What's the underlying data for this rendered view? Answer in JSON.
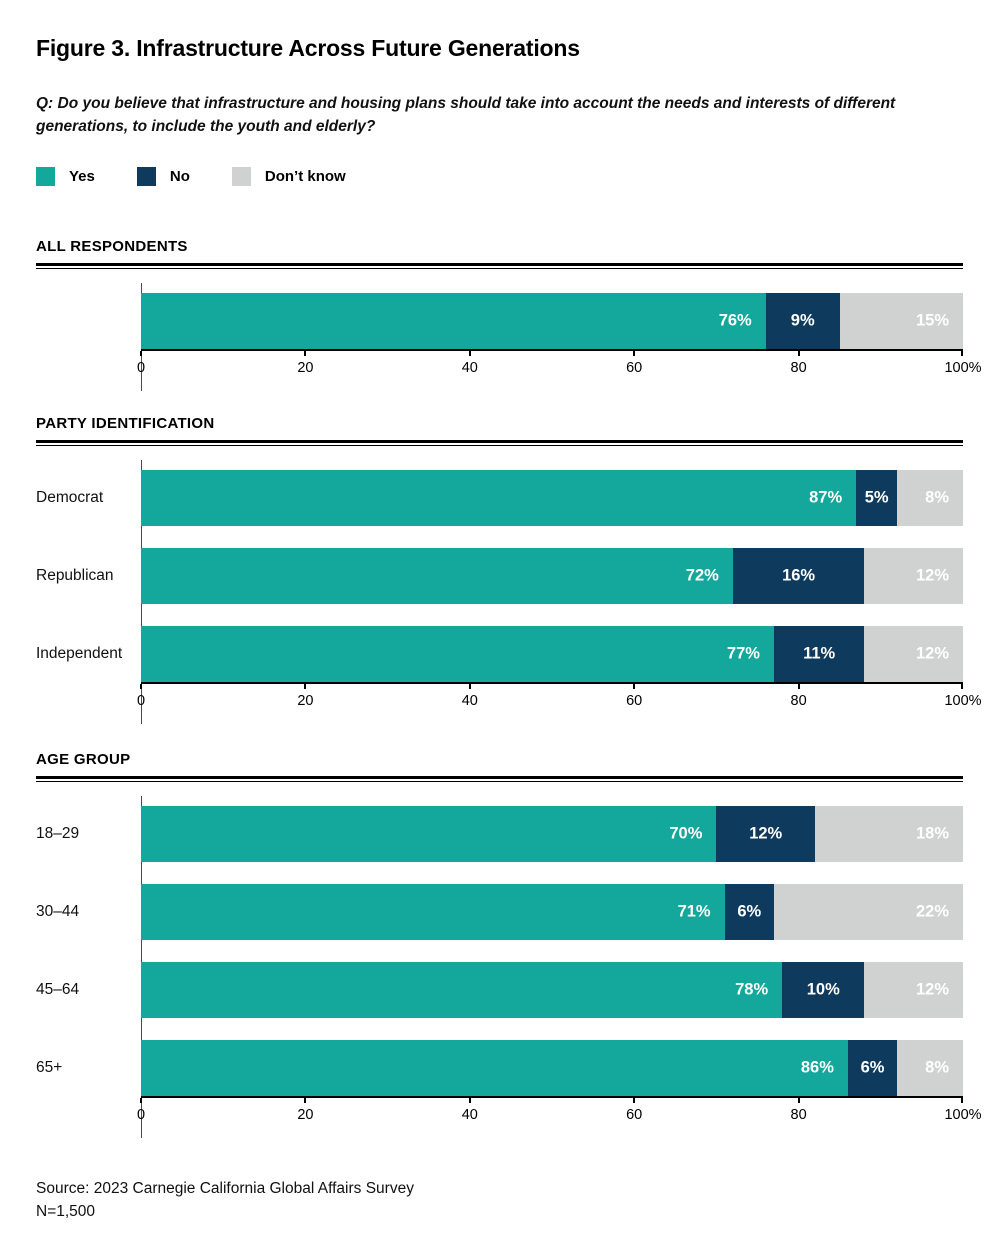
{
  "figure": {
    "title": "Figure 3. Infrastructure Across Future Generations",
    "question": "Q: Do you believe that infrastructure and housing plans should take into account the needs and interests of different\ngenerations, to include the youth and elderly?",
    "source_line1": "Source: 2023 Carnegie California Global Affairs Survey",
    "source_line2": "N=1,500"
  },
  "legend": {
    "position": "top-left",
    "items": [
      {
        "label": "Yes",
        "color": "#14A79B"
      },
      {
        "label": "No",
        "color": "#0E3A5E"
      },
      {
        "label": "Don’t know",
        "color": "#D0D2D1"
      }
    ]
  },
  "colors": {
    "yes": "#14A79B",
    "no": "#0E3A5E",
    "dont_know": "#D0D2D1",
    "axis": "#000000",
    "value_text": "#FFFFFF"
  },
  "chart_data": [
    {
      "type": "bar",
      "stacked": true,
      "orientation": "horizontal",
      "section": "ALL RESPONDENTS",
      "categories": [
        ""
      ],
      "series": [
        {
          "name": "Yes",
          "values": [
            76
          ]
        },
        {
          "name": "No",
          "values": [
            9
          ]
        },
        {
          "name": "Don’t know",
          "values": [
            15
          ]
        }
      ],
      "xlim": [
        0,
        100
      ],
      "x_tick_pos": [
        0,
        20,
        40,
        60,
        80,
        100
      ],
      "x_tick_labels": [
        "0",
        "20",
        "40",
        "60",
        "80",
        "100%"
      ],
      "grid": false
    },
    {
      "type": "bar",
      "stacked": true,
      "orientation": "horizontal",
      "section": "PARTY IDENTIFICATION",
      "categories": [
        "Democrat",
        "Republican",
        "Independent"
      ],
      "series": [
        {
          "name": "Yes",
          "values": [
            87,
            72,
            77
          ]
        },
        {
          "name": "No",
          "values": [
            5,
            16,
            11
          ]
        },
        {
          "name": "Don’t know",
          "values": [
            8,
            12,
            12
          ]
        }
      ],
      "xlim": [
        0,
        100
      ],
      "x_tick_pos": [
        0,
        20,
        40,
        60,
        80,
        100
      ],
      "x_tick_labels": [
        "0",
        "20",
        "40",
        "60",
        "80",
        "100%"
      ],
      "grid": false
    },
    {
      "type": "bar",
      "stacked": true,
      "orientation": "horizontal",
      "section": "AGE GROUP",
      "categories": [
        "18–29",
        "30–44",
        "45–64",
        "65+"
      ],
      "series": [
        {
          "name": "Yes",
          "values": [
            70,
            71,
            78,
            86
          ]
        },
        {
          "name": "No",
          "values": [
            12,
            6,
            10,
            6
          ]
        },
        {
          "name": "Don’t know",
          "values": [
            18,
            22,
            12,
            8
          ]
        }
      ],
      "xlim": [
        0,
        100
      ],
      "x_tick_pos": [
        0,
        20,
        40,
        60,
        80,
        100
      ],
      "x_tick_labels": [
        "0",
        "20",
        "40",
        "60",
        "80",
        "100%"
      ],
      "grid": false
    }
  ]
}
